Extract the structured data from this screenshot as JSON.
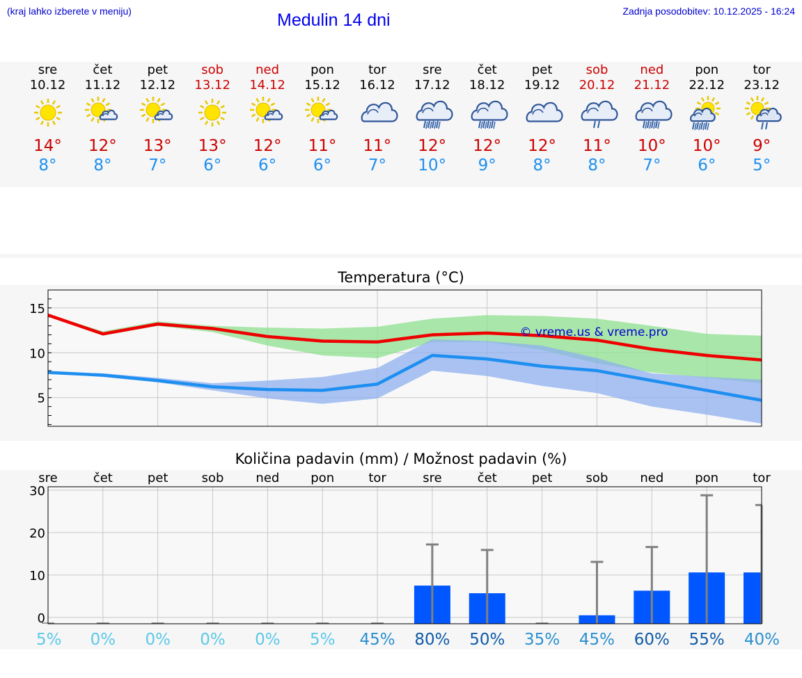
{
  "header": {
    "hint": "(kraj lahko izberete v meniju)",
    "title": "Medulin 14 dni",
    "updated": "Zadnja posodobitev: 10.12.2025 - 16:24"
  },
  "days": [
    {
      "name": "sre",
      "date": "10.12",
      "weekend": false,
      "icon": "sun-icon",
      "tmax": "14°",
      "tmin": "8°"
    },
    {
      "name": "čet",
      "date": "11.12",
      "weekend": false,
      "icon": "sun-cloud-icon",
      "tmax": "12°",
      "tmin": "8°"
    },
    {
      "name": "pet",
      "date": "12.12",
      "weekend": false,
      "icon": "sun-cloud-icon",
      "tmax": "13°",
      "tmin": "7°"
    },
    {
      "name": "sob",
      "date": "13.12",
      "weekend": true,
      "icon": "sun-icon",
      "tmax": "13°",
      "tmin": "6°"
    },
    {
      "name": "ned",
      "date": "14.12",
      "weekend": true,
      "icon": "sun-cloud-icon",
      "tmax": "12°",
      "tmin": "6°"
    },
    {
      "name": "pon",
      "date": "15.12",
      "weekend": false,
      "icon": "sun-cloud-icon",
      "tmax": "11°",
      "tmin": "6°"
    },
    {
      "name": "tor",
      "date": "16.12",
      "weekend": false,
      "icon": "cloud-icon",
      "tmax": "11°",
      "tmin": "7°"
    },
    {
      "name": "sre",
      "date": "17.12",
      "weekend": false,
      "icon": "rain-cloud-icon",
      "tmax": "12°",
      "tmin": "10°"
    },
    {
      "name": "čet",
      "date": "18.12",
      "weekend": false,
      "icon": "rain-cloud-icon",
      "tmax": "12°",
      "tmin": "9°"
    },
    {
      "name": "pet",
      "date": "19.12",
      "weekend": false,
      "icon": "cloud-icon",
      "tmax": "12°",
      "tmin": "8°"
    },
    {
      "name": "sob",
      "date": "20.12",
      "weekend": true,
      "icon": "light-rain-cloud-icon",
      "tmax": "11°",
      "tmin": "8°"
    },
    {
      "name": "ned",
      "date": "21.12",
      "weekend": true,
      "icon": "rain-cloud-icon",
      "tmax": "10°",
      "tmin": "7°"
    },
    {
      "name": "pon",
      "date": "22.12",
      "weekend": false,
      "icon": "sun-rain-icon",
      "tmax": "10°",
      "tmin": "6°"
    },
    {
      "name": "tor",
      "date": "23.12",
      "weekend": false,
      "icon": "sun-light-rain-icon",
      "tmax": "9°",
      "tmin": "5°"
    }
  ],
  "colors": {
    "max_line": "#ee0000",
    "max_band": "#8fe08f",
    "min_line": "#1e8ff0",
    "min_band": "#8fb0f0",
    "bar": "#0057ff",
    "whisker": "#808080",
    "weekend": "#cc0000",
    "pct_low": "#5bc8e8",
    "pct_mid": "#2a8fd0",
    "pct_high": "#0d5aa7"
  },
  "chart_data": [
    {
      "type": "line",
      "title": "Temperatura (°C)",
      "x": [
        0,
        1,
        2,
        3,
        4,
        5,
        6,
        7,
        8,
        9,
        10,
        11,
        12,
        13
      ],
      "ylim": [
        1.8,
        17
      ],
      "yticks": [
        5,
        10,
        15
      ],
      "grid": true,
      "series": [
        {
          "name": "max",
          "values": [
            14.2,
            12.1,
            13.2,
            12.7,
            11.8,
            11.3,
            11.2,
            12.0,
            12.2,
            11.9,
            11.4,
            10.4,
            9.7,
            9.2
          ]
        },
        {
          "name": "max_upper",
          "values": [
            14.3,
            12.4,
            13.5,
            13.0,
            12.8,
            12.7,
            12.9,
            13.8,
            14.2,
            14.1,
            13.8,
            13.0,
            12.1,
            11.9
          ]
        },
        {
          "name": "max_lower",
          "values": [
            14.1,
            11.9,
            13.0,
            12.3,
            10.8,
            9.7,
            9.4,
            11.2,
            11.2,
            10.3,
            8.8,
            7.8,
            7.2,
            6.6
          ]
        },
        {
          "name": "min",
          "values": [
            7.8,
            7.5,
            6.9,
            6.2,
            5.9,
            5.8,
            6.5,
            9.7,
            9.3,
            8.5,
            8.0,
            6.9,
            5.8,
            4.7
          ]
        },
        {
          "name": "min_upper",
          "values": [
            7.9,
            7.7,
            7.2,
            6.6,
            6.9,
            7.3,
            8.3,
            11.5,
            11.3,
            10.8,
            9.4,
            7.7,
            7.3,
            7.0
          ]
        },
        {
          "name": "min_lower",
          "values": [
            7.7,
            7.3,
            6.7,
            5.8,
            4.9,
            4.3,
            4.9,
            8.0,
            7.4,
            6.3,
            5.5,
            4.0,
            3.1,
            2.1
          ]
        }
      ],
      "watermark": "© vreme.us & vreme.pro"
    },
    {
      "type": "bar",
      "title": "Količina padavin (mm) / Možnost padavin (%)",
      "categories": [
        "sre",
        "čet",
        "pet",
        "sob",
        "ned",
        "pon",
        "tor",
        "sre",
        "čet",
        "pet",
        "sob",
        "ned",
        "pon",
        "tor"
      ],
      "values": [
        0,
        0,
        0,
        0,
        0,
        0,
        0,
        7.5,
        5.7,
        0,
        0.5,
        6.3,
        10.6,
        10.6
      ],
      "whisker_high": [
        0,
        0,
        0,
        0,
        0,
        0,
        0,
        17.2,
        15.9,
        0,
        13.1,
        16.6,
        28.8,
        26.5
      ],
      "ylim": [
        -1.5,
        30.8
      ],
      "yticks": [
        0,
        10,
        20,
        30
      ],
      "percent": [
        "5%",
        "0%",
        "0%",
        "0%",
        "0%",
        "5%",
        "45%",
        "80%",
        "50%",
        "35%",
        "45%",
        "60%",
        "55%",
        "40%"
      ],
      "percent_level": [
        "low",
        "low",
        "low",
        "low",
        "low",
        "low",
        "mid",
        "high",
        "high",
        "mid",
        "mid",
        "high",
        "high",
        "mid"
      ]
    }
  ]
}
